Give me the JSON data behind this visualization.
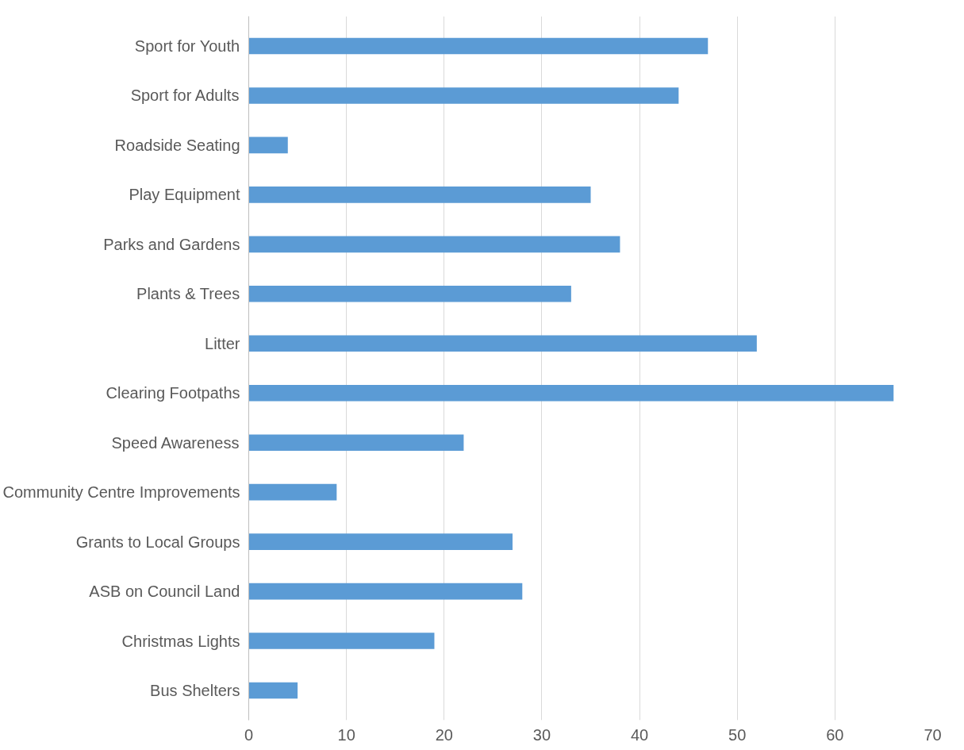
{
  "chart_data": {
    "type": "bar",
    "orientation": "horizontal",
    "categories": [
      "Sport for Youth",
      "Sport for Adults",
      "Roadside Seating",
      "Play Equipment",
      "Parks and Gardens",
      "Plants & Trees",
      "Litter",
      "Clearing Footpaths",
      "Speed Awareness",
      "Community Centre Improvements",
      "Grants to Local Groups",
      "ASB on Council Land",
      "Christmas Lights",
      "Bus Shelters"
    ],
    "values": [
      47,
      44,
      4,
      35,
      38,
      33,
      52,
      66,
      22,
      9,
      27,
      28,
      19,
      5
    ],
    "color": "#5b9bd5",
    "xlim": [
      0,
      70
    ],
    "xticks": [
      0,
      10,
      20,
      30,
      40,
      50,
      60,
      70
    ],
    "grid": "x",
    "legend": false
  }
}
